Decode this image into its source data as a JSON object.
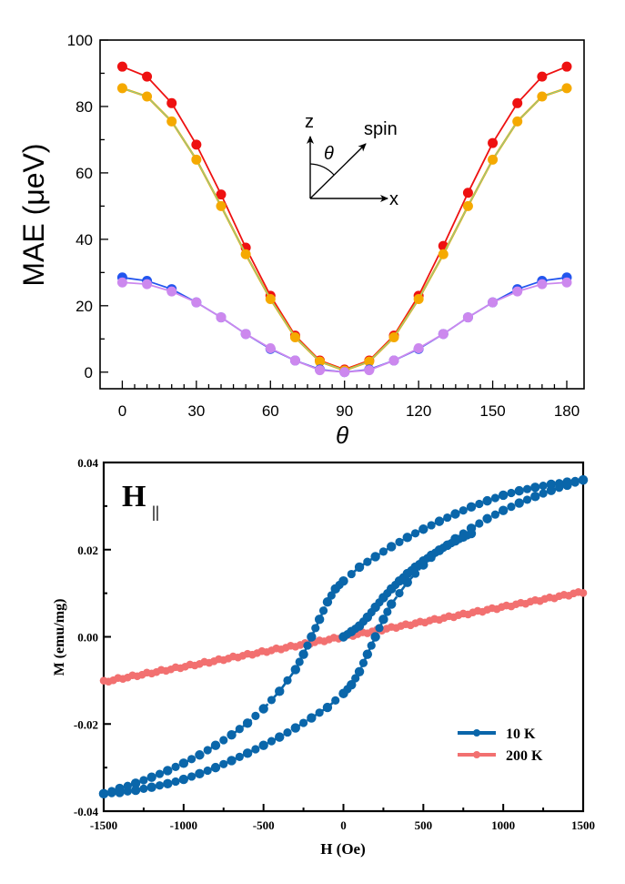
{
  "chart_data": [
    {
      "type": "line",
      "title": "",
      "xlabel": "θ",
      "ylabel": "MAE (μeV)",
      "xlim": [
        -9,
        187
      ],
      "ylim": [
        -5,
        100
      ],
      "xticks": [
        0,
        30,
        60,
        90,
        120,
        150,
        180
      ],
      "xtick_labels": [
        "0",
        "30",
        "60",
        "90",
        "120",
        "150",
        "180"
      ],
      "xminor_step": 5,
      "yticks": [
        0,
        20,
        40,
        60,
        80,
        100
      ],
      "ytick_labels": [
        "0",
        "20",
        "40",
        "60",
        "80",
        "100"
      ],
      "yminor_step": 10,
      "grid": false,
      "legend": null,
      "x": [
        0,
        10,
        20,
        30,
        40,
        50,
        60,
        70,
        80,
        90,
        100,
        110,
        120,
        130,
        140,
        150,
        160,
        170,
        180
      ],
      "series": [
        {
          "name": "red",
          "color": "#ee1111",
          "values": [
            92,
            89,
            81,
            68.5,
            53.5,
            37.5,
            23,
            11,
            3.5,
            0.8,
            3.5,
            11,
            23,
            38,
            54,
            69,
            81,
            89,
            92
          ]
        },
        {
          "name": "orange",
          "color": "#f5a900",
          "line_color": "#7fd0a0",
          "values": [
            85.5,
            83,
            75.5,
            64,
            50,
            35.5,
            22,
            10.5,
            3.2,
            0.5,
            3.2,
            10.5,
            22,
            35.5,
            50,
            64,
            75.5,
            83,
            85.5
          ]
        },
        {
          "name": "blue",
          "color": "#2255ee",
          "values": [
            28.5,
            27.5,
            25,
            21,
            16.5,
            11.5,
            7,
            3.5,
            0.8,
            0,
            0.8,
            3.5,
            7,
            11.5,
            16.5,
            21,
            25,
            27.5,
            28.5
          ]
        },
        {
          "name": "violet",
          "color": "#cc88ee",
          "values": [
            27,
            26.5,
            24.3,
            21,
            16.5,
            11.5,
            7.2,
            3.5,
            0.6,
            0,
            0.6,
            3.5,
            7.2,
            11.5,
            16.5,
            21,
            24.3,
            26.5,
            27
          ]
        }
      ],
      "annotation": {
        "z_label": "z",
        "x_label": "x",
        "spin_label": "spin",
        "theta_label": "θ"
      }
    },
    {
      "type": "scatter",
      "title": "",
      "annotation": "H∥",
      "annotation_main": "H",
      "annotation_sub": "||",
      "xlabel": "H (Oe)",
      "ylabel": "M (emu/mg)",
      "xlim": [
        -1500,
        1500
      ],
      "ylim": [
        -0.04,
        0.04
      ],
      "xticks": [
        -1500,
        -1000,
        -500,
        0,
        500,
        1000,
        1500
      ],
      "xtick_labels": [
        "-1500",
        "-1000",
        "-500",
        "0",
        "500",
        "1000",
        "1500"
      ],
      "xminor_step": 250,
      "yticks": [
        -0.04,
        -0.02,
        0.0,
        0.02,
        0.04
      ],
      "ytick_labels": [
        "-0.04",
        "-0.02",
        "0.00",
        "0.02",
        "0.04"
      ],
      "yminor_step": 0.01,
      "grid": false,
      "legend": "bottom-right",
      "series": [
        {
          "name": "10 K",
          "color": "#0a66aa",
          "branches": [
            {
              "label": "descending",
              "x": [
                1500,
                1400,
                1300,
                1200,
                1100,
                1000,
                900,
                800,
                700,
                600,
                500,
                400,
                300,
                200,
                100,
                0,
                -50,
                -100,
                -150,
                -200,
                -250,
                -300,
                -400,
                -500,
                -600,
                -700,
                -800,
                -900,
                -1000,
                -1100,
                -1200,
                -1300,
                -1400,
                -1500
              ],
              "y": [
                0.036,
                0.0355,
                0.035,
                0.0343,
                0.0335,
                0.0325,
                0.0312,
                0.0298,
                0.0282,
                0.0265,
                0.0247,
                0.0228,
                0.0207,
                0.0184,
                0.016,
                0.0128,
                0.011,
                0.008,
                0.004,
                0.0,
                -0.004,
                -0.0075,
                -0.0125,
                -0.0165,
                -0.0198,
                -0.0225,
                -0.0249,
                -0.0271,
                -0.029,
                -0.0307,
                -0.0322,
                -0.0336,
                -0.0348,
                -0.036
              ]
            },
            {
              "label": "ascending",
              "x": [
                -1500,
                -1400,
                -1300,
                -1200,
                -1100,
                -1000,
                -900,
                -800,
                -700,
                -600,
                -500,
                -400,
                -300,
                -200,
                -100,
                0,
                50,
                100,
                150,
                200,
                250,
                300,
                400,
                500,
                600,
                700,
                800,
                900,
                1000,
                1100,
                1200,
                1300,
                1400,
                1500
              ],
              "y": [
                -0.036,
                -0.0357,
                -0.0352,
                -0.0345,
                -0.0337,
                -0.0327,
                -0.0314,
                -0.03,
                -0.0284,
                -0.0267,
                -0.0249,
                -0.023,
                -0.0209,
                -0.0186,
                -0.0162,
                -0.013,
                -0.011,
                -0.008,
                -0.004,
                0.0,
                0.004,
                0.0075,
                0.0125,
                0.0165,
                0.0198,
                0.0225,
                0.0249,
                0.0271,
                0.029,
                0.0307,
                0.0322,
                0.0336,
                0.0348,
                0.036
              ]
            },
            {
              "label": "initial",
              "x": [
                0,
                50,
                100,
                150,
                200,
                250,
                300,
                350,
                400,
                450,
                500,
                550,
                600,
                650,
                700,
                750,
                800
              ],
              "y": [
                0.0,
                0.0012,
                0.0025,
                0.0045,
                0.0068,
                0.009,
                0.011,
                0.0128,
                0.0145,
                0.016,
                0.0174,
                0.0187,
                0.0199,
                0.021,
                0.022,
                0.0229,
                0.0237
              ]
            }
          ]
        },
        {
          "name": "200 K",
          "color": "#f27070",
          "x_range": [
            -1500,
            1500
          ],
          "slope_per_oe": 6.8e-06,
          "y_at_min": -0.0103,
          "y_at_max": 0.0103
        }
      ]
    }
  ]
}
